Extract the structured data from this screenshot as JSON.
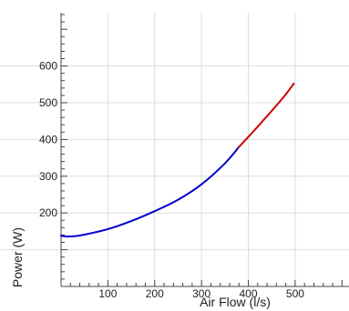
{
  "chart_data": {
    "type": "line",
    "title": "",
    "xlabel": "Air Flow (l/s)",
    "ylabel": "Power (W)",
    "xlim": [
      0,
      615
    ],
    "ylim": [
      0,
      745
    ],
    "grid": true,
    "x_ticks": [
      100,
      200,
      300,
      400,
      500
    ],
    "y_ticks": [
      100,
      200,
      300,
      400,
      500,
      600
    ],
    "x_tick_labels": [
      "100",
      "200",
      "300",
      "400",
      "500"
    ],
    "y_tick_labels": [
      "",
      "200",
      "300",
      "400",
      "500",
      "600"
    ],
    "series": [
      {
        "color": "#0000cc",
        "x": [
          0,
          10,
          20,
          30,
          50,
          100,
          150,
          200,
          250,
          300,
          350,
          380
        ],
        "y": [
          138,
          136,
          136,
          137,
          141,
          156,
          178,
          205,
          236,
          278,
          335,
          380
        ]
      },
      {
        "color": "#cc0000",
        "x": [
          380,
          400,
          420,
          450,
          480,
          497
        ],
        "y": [
          380,
          407,
          435,
          478,
          523,
          552
        ]
      }
    ]
  }
}
